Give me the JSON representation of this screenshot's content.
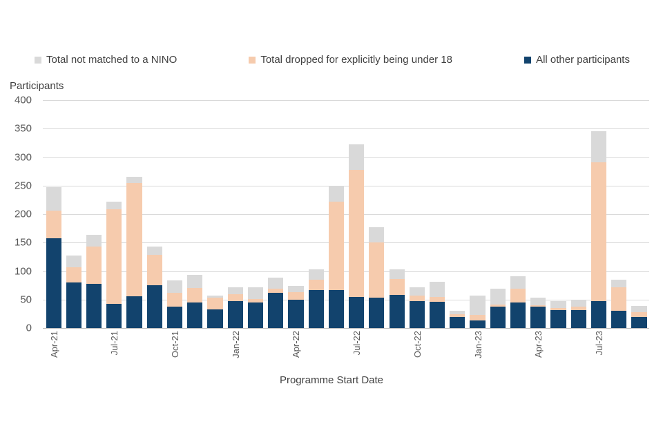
{
  "legend": {
    "items": [
      {
        "label": "Total not matched to a NINO",
        "color": "#d9d9d9",
        "key": "nino"
      },
      {
        "label": "Total dropped for explicitly being under 18",
        "color": "#f6cbad",
        "key": "under18"
      },
      {
        "label": "All other participants",
        "color": "#12436d",
        "key": "other"
      }
    ]
  },
  "axes": {
    "y_title": "Participants",
    "x_title": "Programme Start Date"
  },
  "chart_data": {
    "type": "bar",
    "stacked": true,
    "title": "",
    "xlabel": "Programme Start Date",
    "ylabel": "Participants",
    "ylim": [
      0,
      400
    ],
    "ytick_step": 50,
    "yticks": [
      400,
      350,
      300,
      250,
      200,
      150,
      100,
      50,
      0
    ],
    "grid": "horizontal",
    "legend_position": "top",
    "x_label_every_n": 3,
    "categories": [
      "Apr-21",
      "May-21",
      "Jun-21",
      "Jul-21",
      "Aug-21",
      "Sep-21",
      "Oct-21",
      "Nov-21",
      "Dec-21",
      "Jan-22",
      "Feb-22",
      "Mar-22",
      "Apr-22",
      "May-22",
      "Jun-22",
      "Jul-22",
      "Aug-22",
      "Sep-22",
      "Oct-22",
      "Nov-22",
      "Dec-22",
      "Jan-23",
      "Feb-23",
      "Mar-23",
      "Apr-23",
      "May-23",
      "Jun-23",
      "Jul-23",
      "Aug-23",
      "Sep-23"
    ],
    "series": [
      {
        "name": "All other participants",
        "color": "#12436d",
        "stack_order": 1,
        "values": [
          158,
          80,
          78,
          43,
          56,
          75,
          37,
          45,
          33,
          47,
          45,
          62,
          50,
          67,
          67,
          54,
          53,
          58,
          47,
          46,
          20,
          13,
          37,
          45,
          37,
          31,
          31,
          47,
          30,
          20
        ]
      },
      {
        "name": "Total dropped for explicitly being under 18",
        "color": "#f6cbad",
        "stack_order": 2,
        "values": [
          48,
          27,
          65,
          165,
          199,
          54,
          25,
          25,
          20,
          13,
          6,
          7,
          13,
          18,
          155,
          223,
          97,
          28,
          10,
          9,
          4,
          10,
          4,
          24,
          3,
          4,
          7,
          244,
          42,
          8
        ]
      },
      {
        "name": "Total not matched to a NINO",
        "color": "#d9d9d9",
        "stack_order": 3,
        "values": [
          41,
          20,
          21,
          14,
          10,
          14,
          22,
          23,
          4,
          12,
          21,
          19,
          11,
          18,
          27,
          46,
          27,
          17,
          14,
          26,
          6,
          34,
          28,
          22,
          13,
          12,
          11,
          54,
          13,
          11
        ]
      }
    ]
  }
}
